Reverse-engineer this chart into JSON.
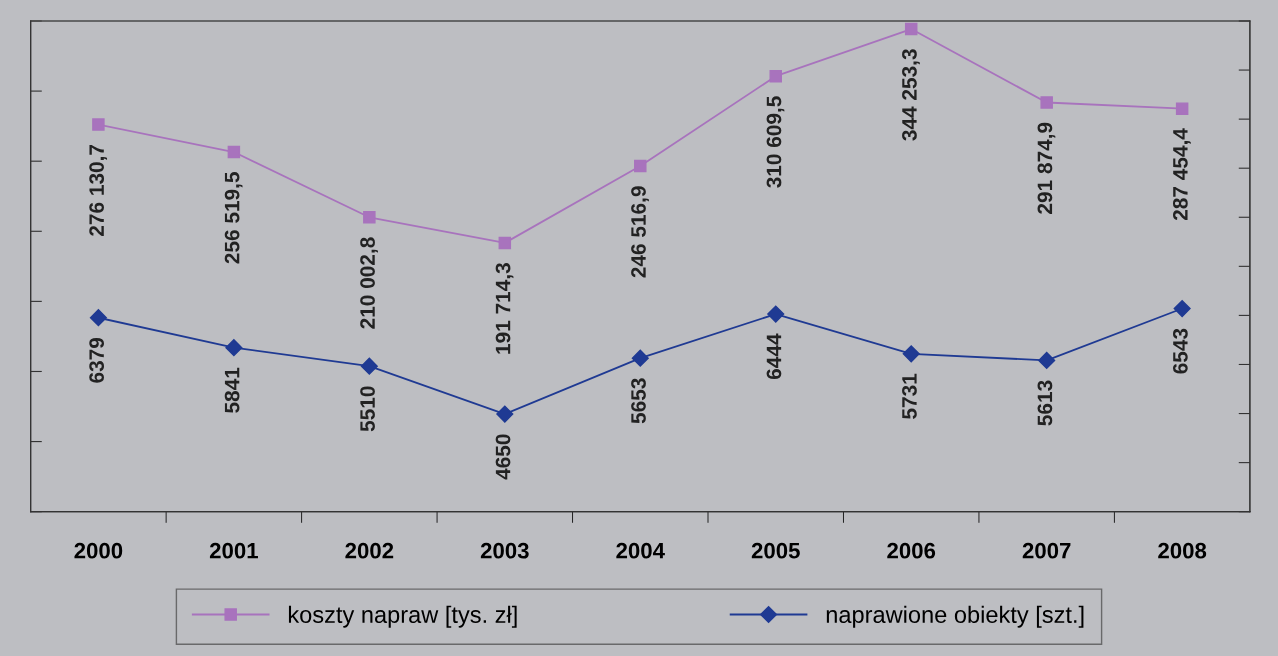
{
  "chart_data": {
    "type": "line",
    "categories": [
      "2000",
      "2001",
      "2002",
      "2003",
      "2004",
      "2005",
      "2006",
      "2007",
      "2008"
    ],
    "series": [
      {
        "name": "koszty napraw [tys. zł]",
        "color": "#a873bd",
        "marker": "square",
        "values": [
          276130.7,
          256519.5,
          210002.8,
          191714.3,
          246516.9,
          310609.5,
          344253.3,
          291874.9,
          287454.4
        ],
        "value_labels": [
          "276 130,7",
          "256 519,5",
          "210 002,8",
          "191 714,3",
          "246 516,9",
          "310 609,5",
          "344 253,3",
          "291 874,9",
          "287 454,4"
        ]
      },
      {
        "name": "naprawione obiekty [szt.]",
        "color": "#1f3a93",
        "marker": "diamond",
        "axis": "y2",
        "values": [
          6379,
          5841,
          5510,
          4650,
          5653,
          6444,
          5731,
          5613,
          6543
        ],
        "value_labels": [
          "6379",
          "5841",
          "5510",
          "4650",
          "5653",
          "6444",
          "5731",
          "5613",
          "6543"
        ]
      }
    ],
    "ylim": [
      0,
      350000
    ],
    "y2lim": [
      2900,
      11700
    ],
    "tick_labels": "x",
    "grid": false,
    "legend": "bottom",
    "line_style": "solid"
  }
}
